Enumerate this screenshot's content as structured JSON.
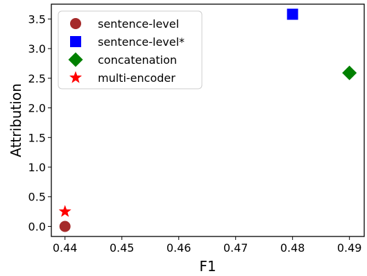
{
  "chart_data": {
    "type": "scatter",
    "xlabel": "F1",
    "ylabel": "Attribution",
    "xlim": [
      0.4376,
      0.4926
    ],
    "ylim": [
      -0.17,
      3.75
    ],
    "xticks": [
      0.44,
      0.45,
      0.46,
      0.47,
      0.48,
      0.49
    ],
    "xtick_labels": [
      "0.44",
      "0.45",
      "0.46",
      "0.47",
      "0.48",
      "0.49"
    ],
    "yticks": [
      0.0,
      0.5,
      1.0,
      1.5,
      2.0,
      2.5,
      3.0,
      3.5
    ],
    "ytick_labels": [
      "0.0",
      "0.5",
      "1.0",
      "1.5",
      "2.0",
      "2.5",
      "3.0",
      "3.5"
    ],
    "grid": false,
    "legend_position": "top-left",
    "series": [
      {
        "name": "sentence-level",
        "marker": "circle",
        "color": "#a52a2a",
        "points": [
          {
            "x": 0.44,
            "y": 0.0
          }
        ]
      },
      {
        "name": "sentence-level*",
        "marker": "square",
        "color": "#0000ff",
        "points": [
          {
            "x": 0.48,
            "y": 3.58
          }
        ]
      },
      {
        "name": "concatenation",
        "marker": "diamond",
        "color": "#008000",
        "points": [
          {
            "x": 0.49,
            "y": 2.59
          }
        ]
      },
      {
        "name": "multi-encoder",
        "marker": "star",
        "color": "#ff0000",
        "points": [
          {
            "x": 0.44,
            "y": 0.25
          }
        ]
      }
    ]
  }
}
